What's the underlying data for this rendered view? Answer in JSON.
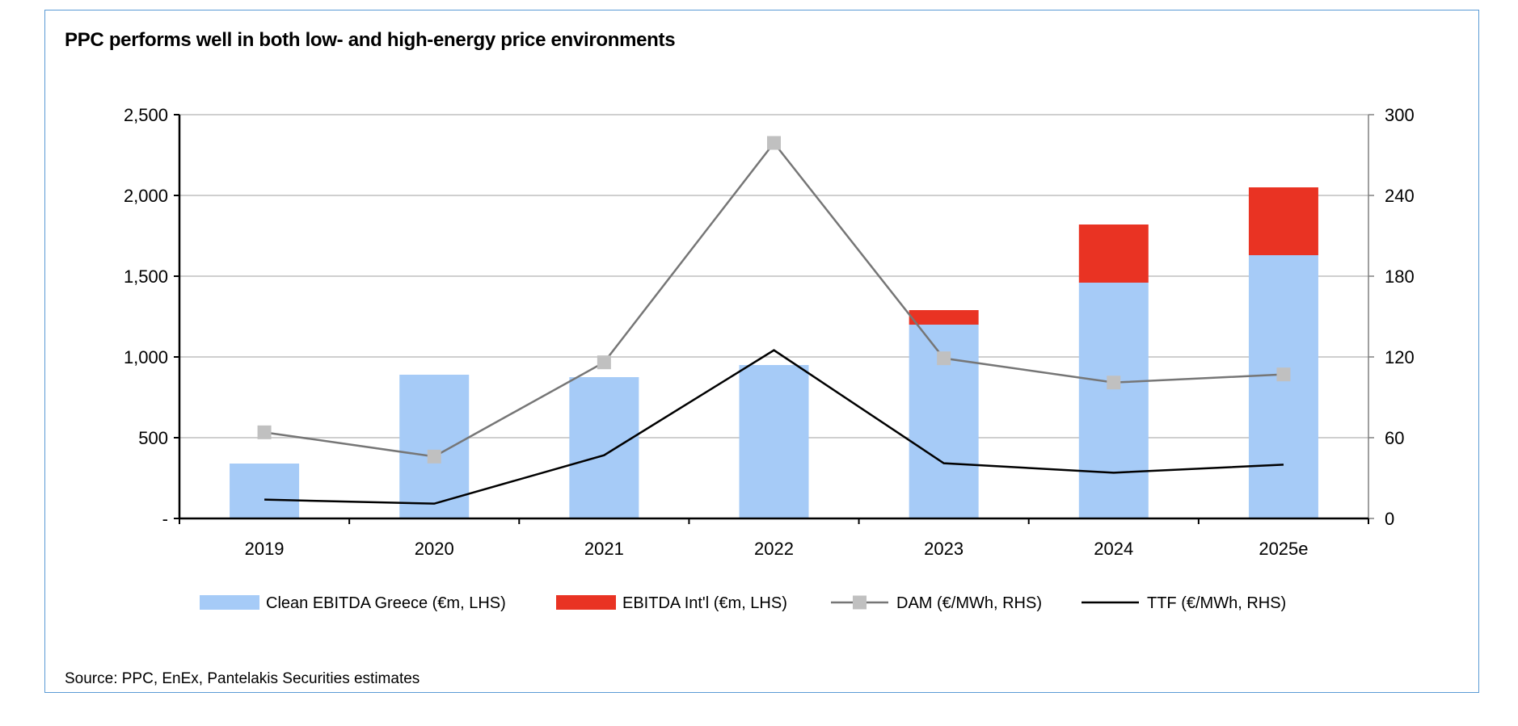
{
  "chart_data": {
    "type": "bar",
    "title": "PPC performs well in both low- and high-energy price environments",
    "source": "Source: PPC, EnEx, Pantelakis Securities estimates",
    "categories": [
      "2019",
      "2020",
      "2021",
      "2022",
      "2023",
      "2024",
      "2025e"
    ],
    "left_axis": {
      "ylim": [
        0,
        2500
      ],
      "ticks": [
        0,
        500,
        1000,
        1500,
        2000,
        2500
      ],
      "tick_labels": [
        "-",
        "500",
        "1,000",
        "1,500",
        "2,000",
        "2,500"
      ]
    },
    "right_axis": {
      "ylim": [
        0,
        300
      ],
      "ticks": [
        0,
        60,
        120,
        180,
        240,
        300
      ],
      "tick_labels": [
        "0",
        "60",
        "120",
        "180",
        "240",
        "300"
      ]
    },
    "grid": true,
    "legend_position": "bottom",
    "series": [
      {
        "name": "Clean EBITDA Greece (€m, LHS)",
        "type": "stacked-bar",
        "axis": "left",
        "color": "#a6cbf7",
        "values": [
          340,
          890,
          875,
          950,
          1200,
          1460,
          1630
        ]
      },
      {
        "name": "EBITDA Int'l (€m, LHS)",
        "type": "stacked-bar",
        "axis": "left",
        "color": "#e93323",
        "values": [
          0,
          0,
          0,
          0,
          90,
          360,
          420
        ]
      },
      {
        "name": "DAM (€/MWh, RHS)",
        "type": "line",
        "marker": "square",
        "axis": "right",
        "color": "#767676",
        "values": [
          64,
          46,
          116,
          279,
          119,
          101,
          107
        ]
      },
      {
        "name": "TTF (€/MWh, RHS)",
        "type": "line",
        "axis": "right",
        "color": "#000000",
        "values": [
          14,
          11,
          47,
          125,
          41,
          34,
          40
        ]
      }
    ]
  }
}
